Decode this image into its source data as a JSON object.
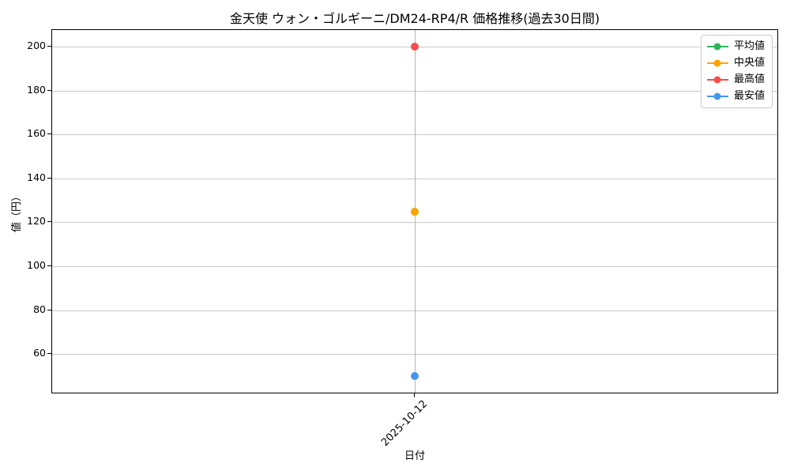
{
  "chart_data": {
    "type": "line",
    "title": "金天使 ウォン・ゴルギーニ/DM24-RP4/R 価格推移(過去30日間)",
    "xlabel": "日付",
    "ylabel": "値（円）",
    "categories": [
      "2025-10-12"
    ],
    "series": [
      {
        "name": "平均値",
        "color": "#2eb55b",
        "values": [
          125
        ]
      },
      {
        "name": "中央値",
        "color": "#ffa502",
        "values": [
          125
        ]
      },
      {
        "name": "最高値",
        "color": "#f84d4d",
        "values": [
          200
        ]
      },
      {
        "name": "最安値",
        "color": "#4597ec",
        "values": [
          50
        ]
      }
    ],
    "ylim": [
      42.5,
      207.5
    ],
    "yticks": [
      60,
      80,
      100,
      120,
      140,
      160,
      180,
      200
    ],
    "grid": true,
    "legend_position": "upper right",
    "marker": "circle"
  }
}
